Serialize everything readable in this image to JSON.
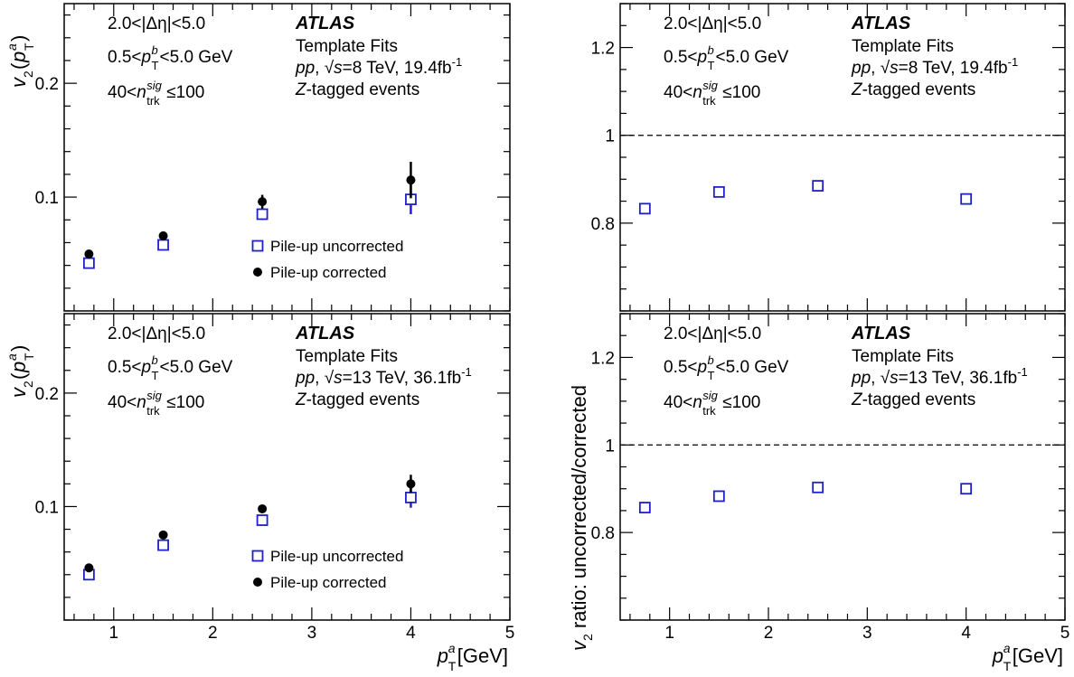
{
  "figure": {
    "panel_text": {
      "deta": "2.0<|Δη|<5.0",
      "ptb_pre": "0.5<",
      "ptb_p": "p",
      "ptb_sup": "b",
      "ptb_sub": "T",
      "ptb_post": "<5.0 GeV",
      "ntrk_pre": "40<",
      "ntrk_n": "n",
      "ntrk_sup": "sig",
      "ntrk_sub": "trk",
      "ntrk_post": "≤100",
      "atlas": "ATLAS",
      "template": "Template Fits",
      "pp": "pp",
      "sqrt_sym": "√",
      "s": "s",
      "ztag_z": "Z",
      "ztag_rest": "-tagged events"
    },
    "legend": {
      "uncorrected": "Pile-up uncorrected",
      "corrected": "Pile-up corrected"
    },
    "y_left": {
      "v": "v",
      "two": "2",
      "open": "(",
      "p": "p",
      "sup": "a",
      "sub": "T",
      "close": ")"
    },
    "y_right": "v",
    "y_right_sub": "2",
    "y_right_rest": " ratio: uncorrected/corrected",
    "x_title": {
      "p": "p",
      "sup": "a",
      "sub": "T",
      "unit": " [GeV]"
    },
    "tick_labels": {
      "x": [
        "1",
        "2",
        "3",
        "4",
        "5"
      ],
      "v2": [
        "0.1",
        "0.2"
      ],
      "ratio": [
        "0.8",
        "1",
        "1.2"
      ]
    },
    "colors": {
      "uncorrected": "#1f1fcc",
      "corrected": "#000000",
      "reference_line": "#000000"
    }
  },
  "chart_data": [
    {
      "type": "scatter",
      "panel": "top-left",
      "energy_text": "=8 TeV, 19.4fb",
      "energy_sup": "-1",
      "xlim": [
        0.5,
        5
      ],
      "ylim": [
        0.0,
        0.27
      ],
      "y_ticks": [
        0.1,
        0.2
      ],
      "grid": false,
      "legend_position": "lower-right",
      "series": [
        {
          "name": "Pile-up uncorrected",
          "marker": "open-square",
          "x": [
            0.75,
            1.5,
            2.5,
            4.0
          ],
          "y": [
            0.042,
            0.058,
            0.085,
            0.098
          ],
          "yerr": [
            0.003,
            0.003,
            0.005,
            0.013
          ]
        },
        {
          "name": "Pile-up corrected",
          "marker": "filled-circle",
          "x": [
            0.75,
            1.5,
            2.5,
            4.0
          ],
          "y": [
            0.05,
            0.066,
            0.096,
            0.115
          ],
          "yerr": [
            0.002,
            0.002,
            0.006,
            0.016
          ]
        }
      ]
    },
    {
      "type": "scatter",
      "panel": "top-right",
      "energy_text": "=8 TeV, 19.4fb",
      "energy_sup": "-1",
      "xlim": [
        0.5,
        5
      ],
      "ylim": [
        0.6,
        1.3
      ],
      "y_ticks": [
        0.8,
        1.0,
        1.2
      ],
      "reference_line": 1.0,
      "grid": false,
      "series": [
        {
          "marker": "open-square",
          "x": [
            0.75,
            1.5,
            2.5,
            4.0
          ],
          "y": [
            0.833,
            0.871,
            0.885,
            0.855
          ]
        }
      ]
    },
    {
      "type": "scatter",
      "panel": "bottom-left",
      "energy_text": "=13 TeV, 36.1fb",
      "energy_sup": "-1",
      "xlim": [
        0.5,
        5
      ],
      "ylim": [
        0.0,
        0.27
      ],
      "y_ticks": [
        0.1,
        0.2
      ],
      "grid": false,
      "legend_position": "lower-right",
      "series": [
        {
          "name": "Pile-up uncorrected",
          "marker": "open-square",
          "x": [
            0.75,
            1.5,
            2.5,
            4.0
          ],
          "y": [
            0.04,
            0.066,
            0.088,
            0.108
          ],
          "yerr": [
            0.002,
            0.002,
            0.004,
            0.009
          ]
        },
        {
          "name": "Pile-up corrected",
          "marker": "filled-circle",
          "x": [
            0.75,
            1.5,
            2.5,
            4.0
          ],
          "y": [
            0.046,
            0.075,
            0.098,
            0.12
          ],
          "yerr": [
            0.002,
            0.002,
            0.003,
            0.008
          ]
        }
      ]
    },
    {
      "type": "scatter",
      "panel": "bottom-right",
      "energy_text": "=13 TeV, 36.1fb",
      "energy_sup": "-1",
      "xlim": [
        0.5,
        5
      ],
      "ylim": [
        0.6,
        1.3
      ],
      "y_ticks": [
        0.8,
        1.0,
        1.2
      ],
      "reference_line": 1.0,
      "grid": false,
      "series": [
        {
          "marker": "open-square",
          "x": [
            0.75,
            1.5,
            2.5,
            4.0
          ],
          "y": [
            0.857,
            0.883,
            0.903,
            0.9
          ]
        }
      ]
    }
  ]
}
